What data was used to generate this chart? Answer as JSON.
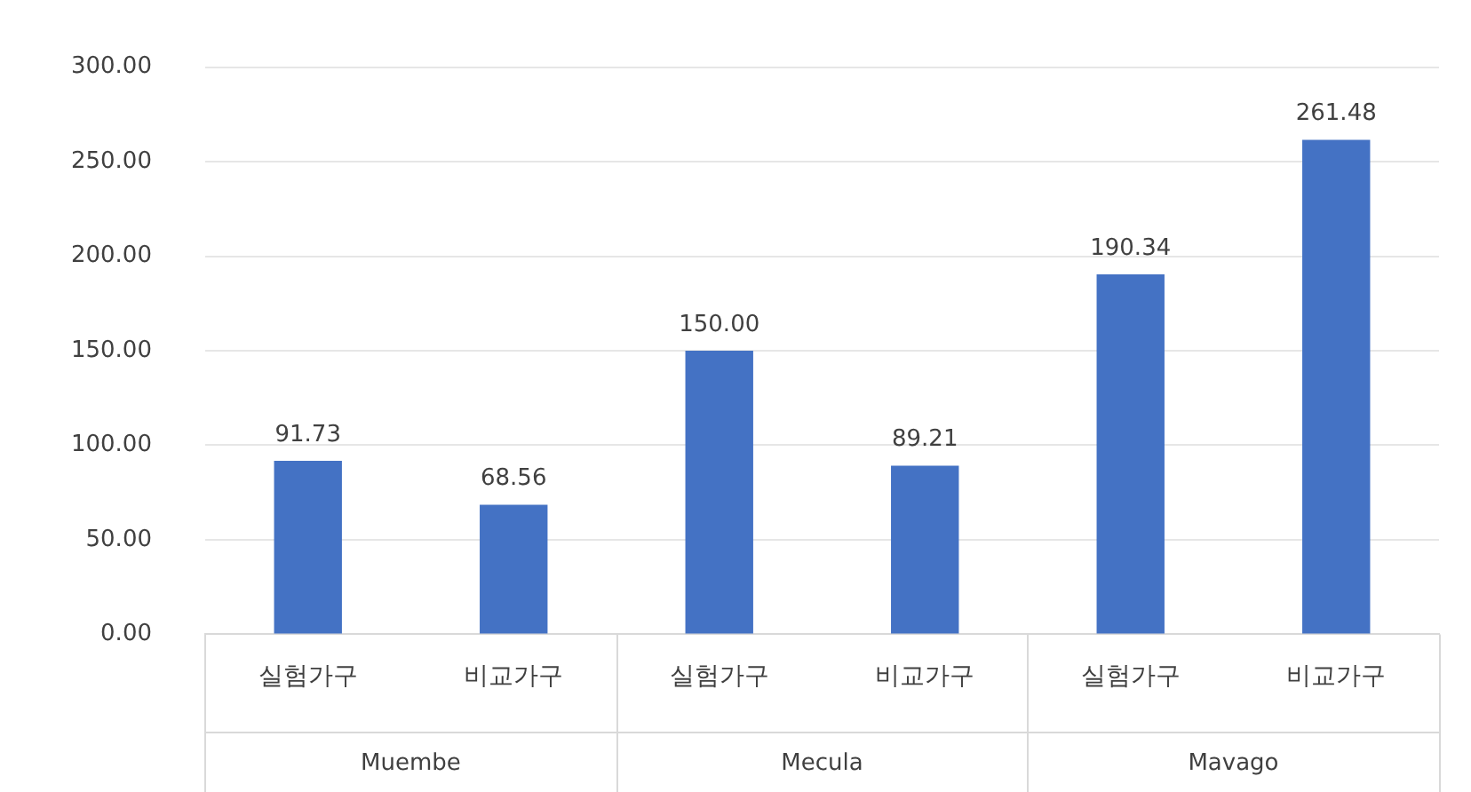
{
  "chart_data": {
    "type": "bar",
    "categories": [
      "실험가구",
      "비교가구",
      "실험가구",
      "비교가구",
      "실험가구",
      "비교가구"
    ],
    "values": [
      91.73,
      68.56,
      150.0,
      89.21,
      190.34,
      261.48
    ],
    "value_labels": [
      "91.73",
      "68.56",
      "150.00",
      "89.21",
      "190.34",
      "261.48"
    ],
    "color": "#4472c4",
    "ylim": [
      0,
      300
    ],
    "yticks": [
      {
        "value": 0,
        "label": "0.00"
      },
      {
        "value": 50,
        "label": "50.00"
      },
      {
        "value": 100,
        "label": "100.00"
      },
      {
        "value": 150,
        "label": "150.00"
      },
      {
        "value": 200,
        "label": "200.00"
      },
      {
        "value": 250,
        "label": "250.00"
      },
      {
        "value": 300,
        "label": "300.00"
      }
    ],
    "grid": "y",
    "legend": false,
    "annotations": [
      "Muembe",
      "Mecula",
      "Mavago"
    ]
  }
}
